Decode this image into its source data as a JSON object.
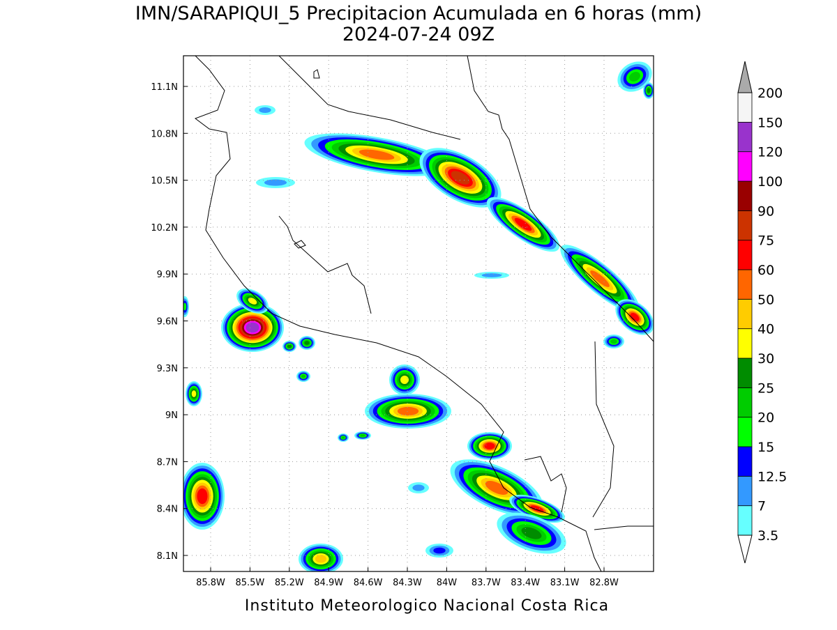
{
  "title": [
    "IMN/SARAPIQUI_5 Precipitacion Acumulada en 6 horas (mm)",
    "2024-07-24 09Z"
  ],
  "map": {
    "lat_labels": [
      "11.1N",
      "10.8N",
      "10.5N",
      "10.2N",
      "9.9N",
      "9.6N",
      "9.3N",
      "9N",
      "8.7N",
      "8.4N",
      "8.1N"
    ],
    "lon_labels": [
      "85.8W",
      "85.5W",
      "85.2W",
      "84.9W",
      "84.6W",
      "84.3W",
      "84W",
      "83.7W",
      "83.4W",
      "83.1W",
      "82.8W"
    ]
  },
  "colorbar": {
    "levels": [
      3.5,
      7,
      12.5,
      15,
      20,
      25,
      30,
      40,
      50,
      60,
      75,
      90,
      100,
      120,
      150,
      200
    ],
    "colors": [
      "#66ffff",
      "#3399ff",
      "#0000ff",
      "#00ff00",
      "#00cc00",
      "#008c00",
      "#ffff00",
      "#ffcc00",
      "#ff6600",
      "#ff0000",
      "#cc3300",
      "#990000",
      "#ff00ff",
      "#9933cc",
      "#f5f5f5"
    ],
    "under_color": "#ffffff",
    "over_color": "#aaaaaa"
  },
  "footer": "Instituto Meteorologico Nacional Costa Rica"
}
